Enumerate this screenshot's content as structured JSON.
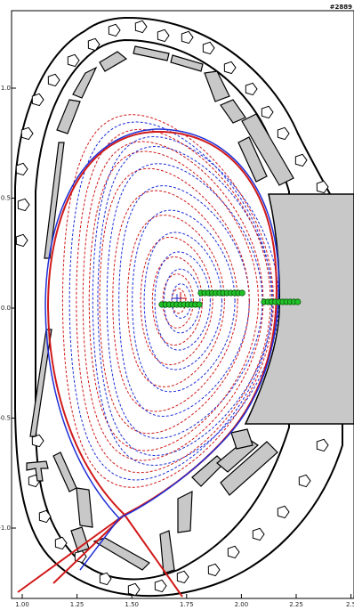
{
  "shot_label": "#2889",
  "chart_data": {
    "type": "equilibrium-cross-section",
    "xlim": [
      0.97,
      2.6
    ],
    "ylim": [
      -1.32,
      1.37
    ],
    "x_ticks": [
      {
        "value": 1.0,
        "label": "1.00"
      },
      {
        "value": 1.25,
        "label": "1.25"
      },
      {
        "value": 1.5,
        "label": "1.50"
      },
      {
        "value": 1.75,
        "label": "1.75"
      },
      {
        "value": 2.0,
        "label": "2.00"
      },
      {
        "value": 2.25,
        "label": "2.25"
      },
      {
        "value": 2.5,
        "label": "2.5"
      }
    ],
    "y_ticks": [
      {
        "value": 1.0,
        "label": "1.0"
      },
      {
        "value": 0.5,
        "label": "0.5"
      },
      {
        "value": 0.0,
        "label": "0.0"
      },
      {
        "value": -0.5,
        "label": "-0.5"
      },
      {
        "value": -1.0,
        "label": "-1.0"
      }
    ],
    "colors": {
      "vessel": "#000000",
      "tile_fill": "#c8c8c8",
      "red": "#d11a1a",
      "blue": "#1f2fd6",
      "marker": "#22c22a"
    }
  }
}
